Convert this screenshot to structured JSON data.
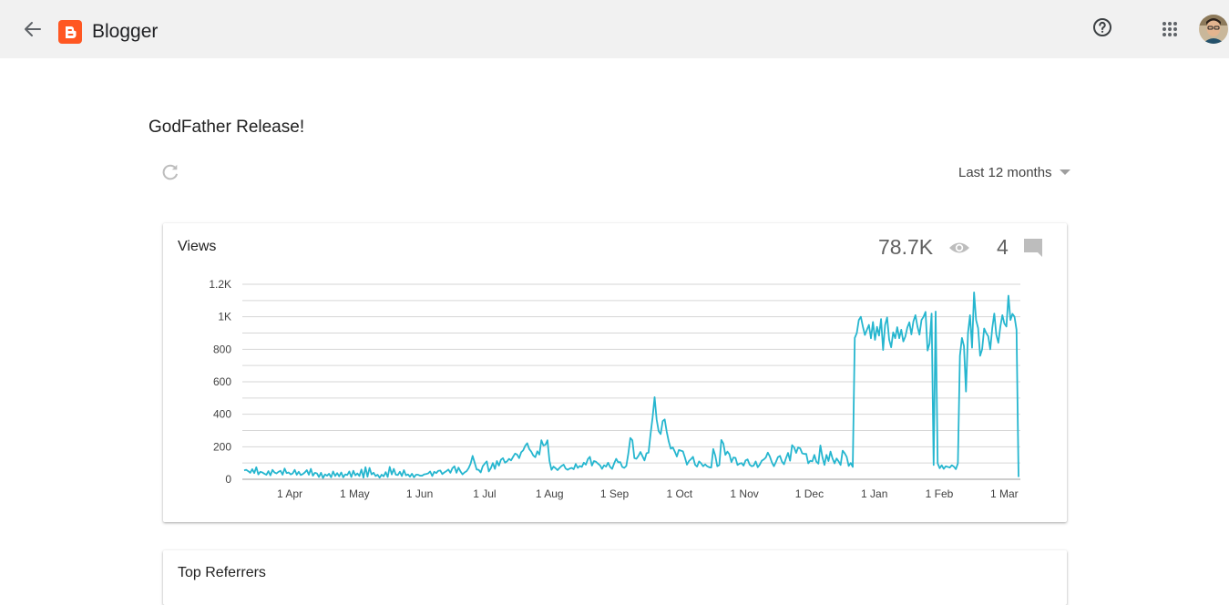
{
  "app": {
    "name": "Blogger"
  },
  "blog": {
    "title": "GodFather Release!"
  },
  "range": {
    "selected": "Last 12 months"
  },
  "views_card": {
    "title": "Views",
    "total": "78.7K",
    "comments": "4"
  },
  "next_card": {
    "title": "Top Referrers"
  },
  "colors": {
    "line": "#26b6cf",
    "logo": "#ff5722",
    "grid": "#d6d6d6"
  },
  "icons": [
    "arrow-back-icon",
    "blogger-logo-icon",
    "help-icon",
    "apps-icon",
    "avatar",
    "refresh-icon",
    "dropdown-caret-icon",
    "eye-icon",
    "comment-icon"
  ],
  "chart_data": {
    "type": "line",
    "series": [
      {
        "values": [
          55,
          58,
          50,
          40,
          62,
          38,
          74,
          30,
          46,
          42,
          34,
          28,
          50,
          24,
          58,
          42,
          36,
          46,
          52,
          28,
          66,
          38,
          42,
          30,
          36,
          58,
          28,
          46,
          26,
          32,
          42,
          56,
          28,
          64,
          22,
          40,
          36,
          14,
          40,
          8,
          30,
          22,
          34,
          12,
          48,
          20,
          38,
          18,
          42,
          12,
          30,
          26,
          48,
          14,
          52,
          24,
          36,
          20,
          60,
          10,
          74,
          16,
          70,
          30,
          40,
          20,
          28,
          10,
          28,
          18,
          44,
          14,
          76,
          30,
          64,
          28,
          26,
          46,
          20,
          56,
          24,
          30,
          16,
          34,
          12,
          28,
          28,
          22,
          22,
          30,
          32,
          36,
          48,
          20,
          46,
          38,
          52,
          54,
          32,
          42,
          50,
          60,
          40,
          68,
          80,
          40,
          72,
          48,
          30,
          42,
          50,
          68,
          96,
          144,
          102,
          60,
          58,
          42,
          80,
          96,
          110,
          48,
          68,
          100,
          64,
          112,
          84,
          120,
          130,
          102,
          110,
          126,
          116,
          138,
          158,
          152,
          130,
          166,
          178,
          206,
          222,
          186,
          170,
          146,
          136,
          172,
          152,
          240,
          208,
          212,
          240,
          114,
          58,
          78,
          68,
          56,
          70,
          82,
          90,
          66,
          58,
          66,
          70,
          62,
          94,
          70,
          82,
          76,
          102,
          90,
          124,
          138,
          84,
          112,
          108,
          96,
          86,
          64,
          86,
          78,
          102,
          76,
          64,
          98,
          126,
          104,
          106,
          76,
          70,
          82,
          158,
          254,
          240,
          130,
          126,
          144,
          168,
          142,
          116,
          160,
          164,
          278,
          380,
          505,
          368,
          296,
          278,
          358,
          368,
          292,
          232,
          188,
          196,
          170,
          140,
          180,
          176,
          172,
          134,
          90,
          112,
          124,
          138,
          90,
          78,
          110,
          98,
          80,
          92,
          80,
          74,
          72,
          186,
          146,
          80,
          88,
          242,
          220,
          150,
          170,
          154,
          106,
          134,
          132,
          88,
          96,
          100,
          84,
          116,
          122,
          90,
          80,
          84,
          110,
          74,
          90,
          114,
          122,
          134,
          164,
          140,
          104,
          80,
          106,
          136,
          144,
          108,
          92,
          130,
          162,
          114,
          210,
          196,
          162,
          196,
          190,
          160,
          156,
          156,
          98,
          114,
          110,
          150,
          108,
          96,
          208,
          136,
          88,
          150,
          112,
          170,
          128,
          98,
          128,
          110,
          88,
          176,
          160,
          138,
          82,
          100,
          76,
          870,
          900,
          980,
          1000,
          940,
          888,
          920,
          950,
          868,
          968,
          858,
          938,
          884,
          986,
          796,
          950,
          996,
          860,
          812,
          904,
          868,
          936,
          868,
          920,
          848,
          878,
          934,
          966,
          892,
          972,
          1010,
          940,
          890,
          980,
          1000,
          1030,
          792,
          836,
          1020,
          88,
          1032,
          98,
          68,
          86,
          64,
          80,
          76,
          72,
          86,
          78,
          62,
          98,
          760,
          870,
          820,
          540,
          900,
          1010,
          810,
          1150,
          980,
          930,
          760,
          800,
          928,
          900,
          880,
          800,
          930,
          1020,
          890,
          840,
          940,
          1010,
          958,
          940,
          1130,
          980,
          1018,
          1000,
          920,
          14
        ]
      }
    ],
    "x_ticks": [
      "1 Apr",
      "1 May",
      "1 Jun",
      "1 Jul",
      "1 Aug",
      "1 Sep",
      "1 Oct",
      "1 Nov",
      "1 Dec",
      "1 Jan",
      "1 Feb",
      "1 Mar"
    ],
    "y_ticks": [
      "0",
      "200",
      "400",
      "600",
      "800",
      "1K",
      "1.2K"
    ],
    "ylim": [
      0,
      1200
    ],
    "grid": true
  }
}
